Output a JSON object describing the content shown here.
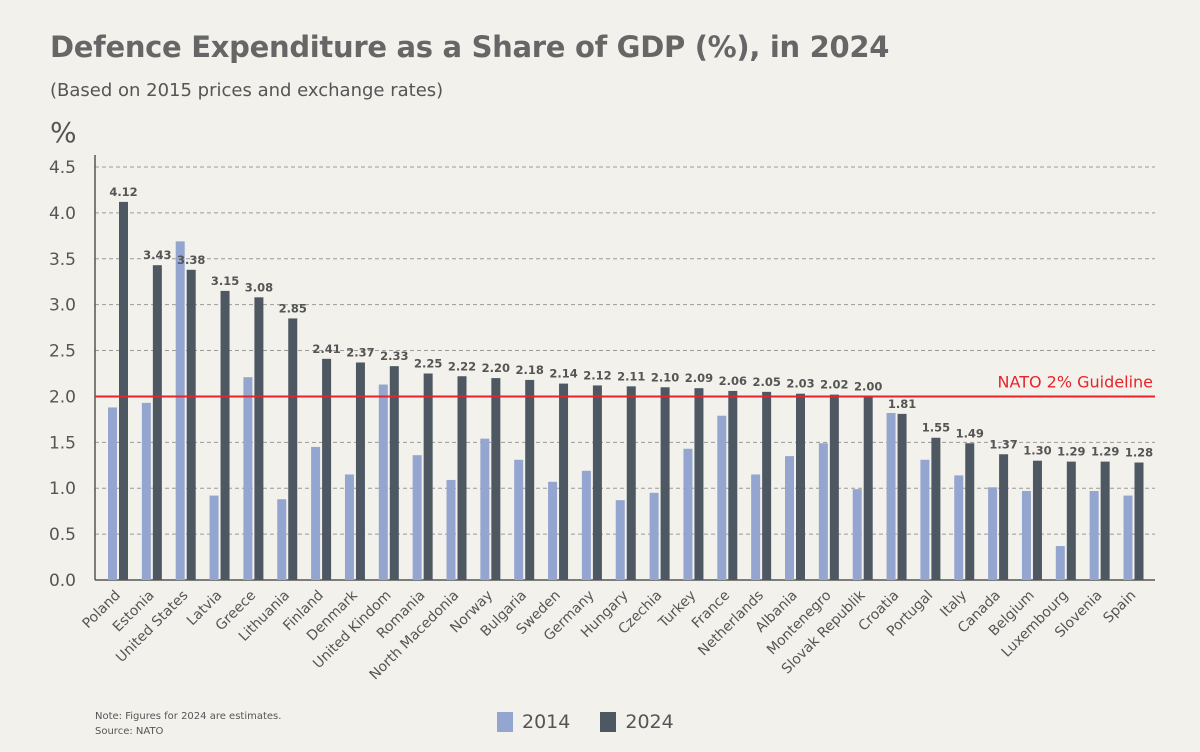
{
  "chart_data": {
    "type": "bar",
    "title": "Defence Expenditure as a Share of GDP (%), in 2024",
    "subtitle": "(Based on 2015 prices and exchange rates)",
    "ylabel": "%",
    "ylim": [
      0,
      4.5
    ],
    "yticks": [
      "0.0",
      "0.5",
      "1.0",
      "1.5",
      "2.0",
      "2.5",
      "3.0",
      "3.5",
      "4.0",
      "4.5"
    ],
    "grid": true,
    "legend_position": "bottom",
    "categories": [
      "Poland",
      "Estonia",
      "United States",
      "Latvia",
      "Greece",
      "Lithuania",
      "Finland",
      "Denmark",
      "United Kindom",
      "Romania",
      "North Macedonia",
      "Norway",
      "Bulgaria",
      "Sweden",
      "Germany",
      "Hungary",
      "Czechia",
      "Turkey",
      "France",
      "Netherlands",
      "Albania",
      "Montenegro",
      "Slovak Republik",
      "Croatia",
      "Portugal",
      "Italy",
      "Canada",
      "Belgium",
      "Luxembourg",
      "Slovenia",
      "Spain"
    ],
    "series": [
      {
        "name": "2014",
        "color": "#94a6cf",
        "values": [
          1.88,
          1.93,
          3.69,
          0.92,
          2.21,
          0.88,
          1.45,
          1.15,
          2.13,
          1.36,
          1.09,
          1.54,
          1.31,
          1.07,
          1.19,
          0.87,
          0.95,
          1.43,
          1.79,
          1.15,
          1.35,
          1.49,
          0.99,
          1.82,
          1.31,
          1.14,
          1.01,
          0.97,
          0.37,
          0.97,
          0.92
        ]
      },
      {
        "name": "2024",
        "color": "#4d5862",
        "values": [
          4.12,
          3.43,
          3.38,
          3.15,
          3.08,
          2.85,
          2.41,
          2.37,
          2.33,
          2.25,
          2.22,
          2.2,
          2.18,
          2.14,
          2.12,
          2.11,
          2.1,
          2.09,
          2.06,
          2.05,
          2.03,
          2.02,
          2.0,
          1.81,
          1.55,
          1.49,
          1.37,
          1.3,
          1.29,
          1.29,
          1.28
        ],
        "labels": [
          "4.12",
          "3.43",
          "3.38",
          "3.15",
          "3.08",
          "2.85",
          "2.41",
          "2.37",
          "2.33",
          "2.25",
          "2.22",
          "2.20",
          "2.18",
          "2.14",
          "2.12",
          "2.11",
          "2.10",
          "2.09",
          "2.06",
          "2.05",
          "2.03",
          "2.02",
          "2.00",
          "1.81",
          "1.55",
          "1.49",
          "1.37",
          "1.30",
          "1.29",
          "1.29",
          "1.28"
        ]
      }
    ],
    "reference_line": {
      "value": 2.0,
      "label": "NATO 2% Guideline",
      "color": "#e8232a"
    }
  },
  "note_text": "Note: Figures for 2024 are estimates.",
  "source_text": "Source: NATO",
  "legend": [
    {
      "label": "2014",
      "color": "#94a6cf"
    },
    {
      "label": "2024",
      "color": "#4d5862"
    }
  ]
}
